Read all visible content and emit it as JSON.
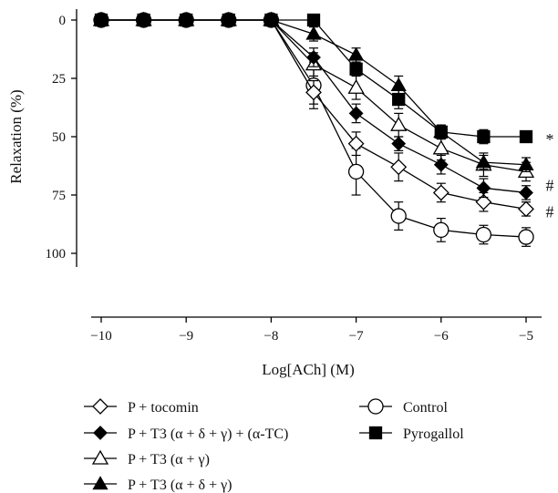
{
  "chart_data": {
    "type": "line",
    "xlabel": "Log[ACh] (M)",
    "ylabel": "Relaxation (%)",
    "xlim": [
      -10,
      -5
    ],
    "ylim": [
      0,
      100
    ],
    "y_inverted": true,
    "grid": false,
    "legend_placement": "bottom",
    "x": [
      -10,
      -9.5,
      -9,
      -8.5,
      -8,
      -7.5,
      -7,
      -6.5,
      -6,
      -5.5,
      -5
    ],
    "xticks": [
      -10,
      -9,
      -8,
      -7,
      -6,
      -5
    ],
    "xtick_labels": [
      "−10",
      "−9",
      "−8",
      "−7",
      "−6",
      "−5"
    ],
    "yticks": [
      0,
      25,
      50,
      75,
      100
    ],
    "ytick_labels": [
      "0",
      "25",
      "50",
      "75",
      "100"
    ],
    "series": [
      {
        "name": "P + tocomin",
        "marker": "diamond-open",
        "color": "#000000",
        "values": [
          0,
          0,
          0,
          0,
          0,
          31,
          53,
          63,
          74,
          78,
          81
        ],
        "errors": [
          0,
          0,
          0,
          0,
          0,
          5,
          5,
          6,
          4,
          4,
          3
        ]
      },
      {
        "name": "P + T3 (α + δ + γ) + (α-TC)",
        "marker": "diamond-filled",
        "color": "#000000",
        "values": [
          0,
          0,
          0,
          0,
          0,
          16,
          40,
          53,
          62,
          72,
          74
        ],
        "errors": [
          0,
          0,
          0,
          0,
          0,
          4,
          4,
          3,
          4,
          4,
          3
        ]
      },
      {
        "name": "P + T3 (α + γ)",
        "marker": "triangle-open",
        "color": "#000000",
        "values": [
          0,
          0,
          0,
          0,
          0,
          19,
          29,
          45,
          55,
          62,
          65
        ],
        "errors": [
          0,
          0,
          0,
          0,
          0,
          5,
          5,
          5,
          5,
          5,
          4
        ]
      },
      {
        "name": "P + T3 (α + δ + γ)",
        "marker": "triangle-filled",
        "color": "#000000",
        "values": [
          0,
          0,
          0,
          0,
          0,
          6,
          15,
          28,
          48,
          61,
          62
        ],
        "errors": [
          0,
          0,
          0,
          0,
          0,
          3,
          3,
          4,
          3,
          3,
          3
        ]
      },
      {
        "name": "Control",
        "marker": "circle-open",
        "color": "#000000",
        "values": [
          0,
          0,
          0,
          0,
          0,
          28,
          65,
          84,
          90,
          92,
          93
        ],
        "errors": [
          0,
          0,
          0,
          0,
          0,
          10,
          10,
          6,
          5,
          4,
          4
        ]
      },
      {
        "name": "Pyrogallol",
        "marker": "square-filled",
        "color": "#000000",
        "values": [
          0,
          0,
          0,
          0,
          0,
          0,
          21,
          34,
          48,
          50,
          50
        ],
        "errors": [
          0,
          0,
          0,
          0,
          0,
          0,
          3,
          4,
          3,
          3,
          2
        ]
      }
    ],
    "annotations": [
      {
        "text": "*",
        "series": "Pyrogallol"
      },
      {
        "text": "#",
        "series": "P + T3 (α + δ + γ) + (α-TC)"
      },
      {
        "text": "#",
        "series": "P + tocomin"
      }
    ]
  }
}
